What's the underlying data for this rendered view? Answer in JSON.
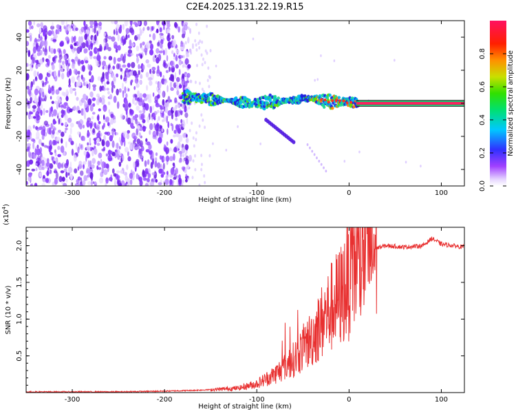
{
  "title": "C2E4.2025.131.22.19.R15",
  "chart_data": [
    {
      "type": "heatmap",
      "xlabel": "Height of straight line (km)",
      "ylabel": "Frequency (Hz)",
      "xlim": [
        -350,
        125
      ],
      "ylim": [
        -50,
        50
      ],
      "x_ticks": [
        -300,
        -200,
        -100,
        0,
        100
      ],
      "y_ticks": [
        -40,
        -20,
        0,
        20,
        40
      ],
      "colorbar": {
        "label": "Normalized spectral amplitude",
        "range": [
          0,
          1
        ],
        "ticks": [
          0.0,
          0.2,
          0.4,
          0.6,
          0.8
        ]
      },
      "noise_region_x": [
        -350,
        -180
      ],
      "signal_track": [
        {
          "x": -180,
          "y": 4
        },
        {
          "x": -160,
          "y": 3
        },
        {
          "x": -140,
          "y": 2
        },
        {
          "x": -120,
          "y": 1
        },
        {
          "x": -100,
          "y": 0
        },
        {
          "x": -80,
          "y": 1
        },
        {
          "x": -60,
          "y": 2
        },
        {
          "x": -40,
          "y": 3
        },
        {
          "x": -20,
          "y": 1
        },
        {
          "x": 0,
          "y": 1
        },
        {
          "x": 10,
          "y": 0
        },
        {
          "x": 125,
          "y": 0
        }
      ],
      "grid": false
    },
    {
      "type": "line",
      "xlabel": "Height of straight line (km)",
      "ylabel": "SNR (10 * v/v)",
      "y_multiplier": "(x10",
      "y_multiplier_exp": "4",
      "y_multiplier_close": ")",
      "xlim": [
        -350,
        125
      ],
      "ylim": [
        0,
        2.25
      ],
      "x_ticks": [
        -300,
        -200,
        -100,
        0,
        100
      ],
      "y_ticks": [
        0.5,
        1.0,
        1.5,
        2.0
      ],
      "line_color": "#e83030",
      "series": [
        {
          "x": [
            -350,
            -300,
            -250,
            -200,
            -170,
            -150,
            -120,
            -100,
            -80,
            -60,
            -50,
            -40,
            -30,
            -20,
            -10,
            0,
            10,
            20,
            30,
            40,
            60,
            80,
            90,
            100,
            125
          ],
          "values": [
            0.01,
            0.01,
            0.01,
            0.02,
            0.03,
            0.04,
            0.06,
            0.12,
            0.25,
            0.45,
            0.6,
            0.75,
            0.95,
            1.15,
            1.3,
            1.55,
            1.8,
            1.9,
            1.97,
            2.0,
            1.98,
            2.0,
            2.1,
            2.02,
            1.98
          ]
        }
      ],
      "grid": false
    }
  ]
}
